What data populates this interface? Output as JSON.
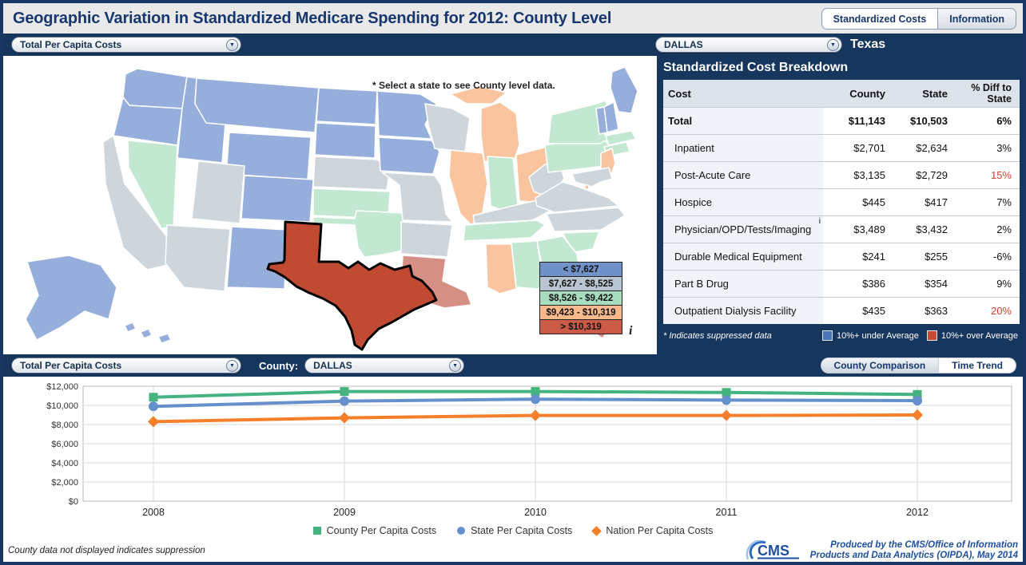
{
  "header": {
    "title": "Geographic Variation in Standardized Medicare Spending for 2012: County Level",
    "tabs": [
      {
        "label": "Standardized Costs",
        "active": true
      },
      {
        "label": "Information",
        "active": false
      }
    ]
  },
  "map_panel": {
    "metric_dropdown": "Total Per Capita Costs",
    "note": "* Select a state to see County level data.",
    "legend": [
      {
        "label": "< $7,627",
        "color": "#7092c8"
      },
      {
        "label": "$7,627 - $8,525",
        "color": "#b9c6d1"
      },
      {
        "label": "$8,526 - $9,422",
        "color": "#a9ddc0"
      },
      {
        "label": "$9,423 - $10,319",
        "color": "#f9b98c"
      },
      {
        "label": "> $10,319",
        "color": "#cb5b47"
      }
    ],
    "info_icon": "i",
    "category_colors": {
      "c1": "#95aedb",
      "c2": "#ced6dc",
      "c3": "#c3e8d1",
      "c4": "#f9c49e",
      "c5": "#d68f84",
      "selected": "#c04a32"
    },
    "state_categories": {
      "WA": "c1",
      "OR": "c1",
      "ID": "c1",
      "MT": "c1",
      "WY": "c1",
      "CO": "c1",
      "ND": "c1",
      "SD": "c1",
      "MN": "c1",
      "IA": "c1",
      "NM": "c1",
      "ME": "c1",
      "VT": "c1",
      "NH": "c1",
      "AK": "c1",
      "HI": "c1",
      "CA": "c2",
      "UT": "c2",
      "AZ": "c2",
      "NE": "c2",
      "WI": "c2",
      "MO": "c2",
      "AR": "c2",
      "KY": "c2",
      "WV": "c2",
      "VA": "c2",
      "NC": "c2",
      "MD": "c2",
      "NV": "c3",
      "KS": "c3",
      "OK": "c3",
      "IN": "c3",
      "PA": "c3",
      "NY": "c3",
      "MA": "c3",
      "CT": "c3",
      "TN": "c3",
      "AL": "c3",
      "GA": "c3",
      "SC": "c3",
      "MI": "c4",
      "IL": "c4",
      "OH": "c4",
      "MS": "c4",
      "NJ": "c4",
      "DC": "c4",
      "LA": "c5",
      "FL": "c5",
      "TX": "selected"
    },
    "selected_state": "TX"
  },
  "breakdown_panel": {
    "county_dropdown": "DALLAS",
    "state_label": "Texas",
    "title": "Standardized Cost Breakdown",
    "columns": {
      "cost": "Cost",
      "county": "County",
      "state": "State",
      "diff": "% Diff to State"
    },
    "rows": [
      {
        "cost": "Total",
        "county": "$11,143",
        "state": "$10,503",
        "diff": "6%",
        "bold": true,
        "red": false,
        "sup": ""
      },
      {
        "cost": "Inpatient",
        "county": "$2,701",
        "state": "$2,634",
        "diff": "3%",
        "bold": false,
        "red": false,
        "sup": ""
      },
      {
        "cost": "Post-Acute Care",
        "county": "$3,135",
        "state": "$2,729",
        "diff": "15%",
        "bold": false,
        "red": true,
        "sup": ""
      },
      {
        "cost": "Hospice",
        "county": "$445",
        "state": "$417",
        "diff": "7%",
        "bold": false,
        "red": false,
        "sup": ""
      },
      {
        "cost": "Physician/OPD/Tests/Imaging",
        "county": "$3,489",
        "state": "$3,432",
        "diff": "2%",
        "bold": false,
        "red": false,
        "sup": "i"
      },
      {
        "cost": "Durable Medical Equipment",
        "county": "$241",
        "state": "$255",
        "diff": "-6%",
        "bold": false,
        "red": false,
        "sup": ""
      },
      {
        "cost": "Part B Drug",
        "county": "$386",
        "state": "$354",
        "diff": "9%",
        "bold": false,
        "red": false,
        "sup": ""
      },
      {
        "cost": "Outpatient Dialysis Facility",
        "county": "$435",
        "state": "$363",
        "diff": "20%",
        "bold": false,
        "red": true,
        "sup": ""
      }
    ],
    "footnote": "* Indicates suppressed data",
    "avg_legend": [
      {
        "label": "10%+ under Average",
        "color": "#4a76b9"
      },
      {
        "label": "10%+ over Average",
        "color": "#c74a33"
      }
    ]
  },
  "trend_panel": {
    "metric_dropdown": "Total Per Capita Costs",
    "county_label": "County:",
    "county_dropdown": "DALLAS",
    "tabs": [
      {
        "label": "County Comparison",
        "active": false
      },
      {
        "label": "Time Trend",
        "active": true
      }
    ],
    "footnote": "County data not displayed indicates suppression",
    "credit_line1": "Produced by the CMS/Office of Information",
    "credit_line2": "Products and Data Analytics (OIPDA), May 2014",
    "logo_text": "CMS"
  },
  "chart_data": {
    "type": "line",
    "x": [
      2008,
      2009,
      2010,
      2011,
      2012
    ],
    "series": [
      {
        "name": "County Per Capita Costs",
        "marker": "square",
        "color": "#44b380",
        "values": [
          10850,
          11450,
          11450,
          11350,
          11143
        ]
      },
      {
        "name": "State Per Capita Costs",
        "marker": "circle",
        "color": "#6590cc",
        "values": [
          9900,
          10450,
          10650,
          10550,
          10503
        ]
      },
      {
        "name": "Nation Per Capita Costs",
        "marker": "diamond",
        "color": "#f57f2a",
        "values": [
          8300,
          8700,
          8950,
          8950,
          9000
        ]
      }
    ],
    "title": "",
    "xlabel": "",
    "ylabel": "",
    "ylim": [
      0,
      12000
    ],
    "ytick_labels": [
      "$12,000",
      "$10,000",
      "$8,000",
      "$6,000",
      "$4,000",
      "$2,000",
      "$0"
    ],
    "grid": true,
    "legend_position": "bottom"
  }
}
